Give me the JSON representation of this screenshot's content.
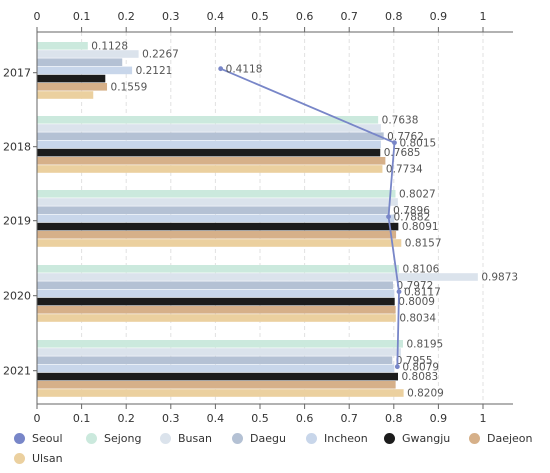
{
  "chart_data": {
    "type": "bar",
    "orientation": "horizontal",
    "categories": [
      "2017",
      "2018",
      "2019",
      "2020",
      "2021"
    ],
    "xlim": [
      0,
      1
    ],
    "x_ticks": [
      "0",
      "0.1",
      "0.2",
      "0.3",
      "0.4",
      "0.5",
      "0.6",
      "0.7",
      "0.8",
      "0.9",
      "1"
    ],
    "grid": "vertical dashed",
    "legend_position": "bottom",
    "series": [
      {
        "name": "Seoul",
        "type": "line",
        "color": "#7886c8",
        "values": [
          0.4118,
          0.8015,
          0.7882,
          0.8117,
          0.8079
        ],
        "labels": [
          "0.4118",
          "0.8015",
          "0.7882",
          "0.8117",
          "0.8079"
        ]
      },
      {
        "name": "Sejong",
        "type": "bar",
        "color": "#cbe9dd",
        "values": [
          0.1128,
          0.7638,
          0.8027,
          0.8106,
          0.8195
        ],
        "labels": [
          "0.1128",
          "0.7638",
          "0.8027",
          "0.8106",
          "0.8195"
        ]
      },
      {
        "name": "Busan",
        "type": "bar",
        "color": "#dbe3ec",
        "values": [
          0.2267,
          0.77,
          0.808,
          0.9873,
          0.815
        ],
        "labels": [
          "0.2267",
          "",
          "",
          "0.9873",
          ""
        ]
      },
      {
        "name": "Daegu",
        "type": "bar",
        "color": "#b4c1d4",
        "values": [
          0.19,
          0.7762,
          0.7896,
          0.7972,
          0.7955
        ],
        "labels": [
          "",
          "0.7762",
          "0.7896",
          "0.7972",
          "0.7955"
        ]
      },
      {
        "name": "Incheon",
        "type": "bar",
        "color": "#c8d6ea",
        "values": [
          0.2121,
          0.77,
          0.8,
          0.8,
          0.8
        ],
        "labels": [
          "0.2121",
          "",
          "",
          "",
          ""
        ]
      },
      {
        "name": "Gwangju",
        "type": "bar",
        "color": "#1c1c1c",
        "values": [
          0.152,
          0.7685,
          0.8091,
          0.8009,
          0.8083
        ],
        "labels": [
          "",
          "0.7685",
          "0.8091",
          "0.8009",
          "0.8083"
        ]
      },
      {
        "name": "Daejeon",
        "type": "bar",
        "color": "#d6b089",
        "values": [
          0.1559,
          0.78,
          0.804,
          0.803,
          0.803
        ],
        "labels": [
          "0.1559",
          "",
          "",
          "",
          ""
        ]
      },
      {
        "name": "Ulsan",
        "type": "bar",
        "color": "#ebd09f",
        "values": [
          0.125,
          0.7734,
          0.8157,
          0.8034,
          0.8209
        ],
        "labels": [
          "",
          "0.7734",
          "0.8157",
          "0.8034",
          "0.8209"
        ]
      }
    ]
  }
}
